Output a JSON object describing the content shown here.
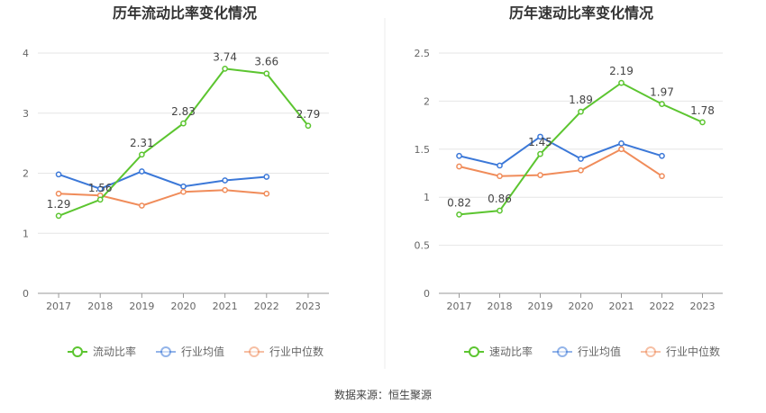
{
  "chart_data": [
    {
      "type": "line",
      "title": "历年流动比率变化情况",
      "categories": [
        "2017",
        "2018",
        "2019",
        "2020",
        "2021",
        "2022",
        "2023"
      ],
      "ylim": [
        0,
        4
      ],
      "yticks": [
        "0",
        "1",
        "2",
        "3",
        "4"
      ],
      "grid": true,
      "legend_position": "bottom",
      "series": [
        {
          "name": "流动比率",
          "color": "#5cc530",
          "values": [
            1.29,
            1.56,
            2.31,
            2.83,
            3.74,
            3.66,
            2.79
          ],
          "labels": [
            "1.29",
            "1.56",
            "2.31",
            "2.83",
            "3.74",
            "3.66",
            "2.79"
          ]
        },
        {
          "name": "行业均值",
          "color": "#3b78d8",
          "values": [
            1.98,
            1.74,
            2.03,
            1.78,
            1.88,
            1.94,
            null
          ]
        },
        {
          "name": "行业中位数",
          "color": "#f08c5a",
          "values": [
            1.66,
            1.63,
            1.46,
            1.69,
            1.72,
            1.66,
            null
          ]
        }
      ]
    },
    {
      "type": "line",
      "title": "历年速动比率变化情况",
      "categories": [
        "2017",
        "2018",
        "2019",
        "2020",
        "2021",
        "2022",
        "2023"
      ],
      "ylim": [
        0,
        2.5
      ],
      "yticks": [
        "0",
        "0.5",
        "1",
        "1.5",
        "2",
        "2.5"
      ],
      "grid": true,
      "legend_position": "bottom",
      "series": [
        {
          "name": "速动比率",
          "color": "#5cc530",
          "values": [
            0.82,
            0.86,
            1.45,
            1.89,
            2.19,
            1.97,
            1.78
          ],
          "labels": [
            "0.82",
            "0.86",
            "1.45",
            "1.89",
            "2.19",
            "1.97",
            "1.78"
          ]
        },
        {
          "name": "行业均值",
          "color": "#3b78d8",
          "values": [
            1.43,
            1.33,
            1.63,
            1.4,
            1.56,
            1.43,
            null
          ]
        },
        {
          "name": "行业中位数",
          "color": "#f08c5a",
          "values": [
            1.32,
            1.22,
            1.23,
            1.28,
            1.5,
            1.22,
            null
          ]
        }
      ]
    }
  ],
  "footer": {
    "source": "数据来源：恒生聚源"
  }
}
